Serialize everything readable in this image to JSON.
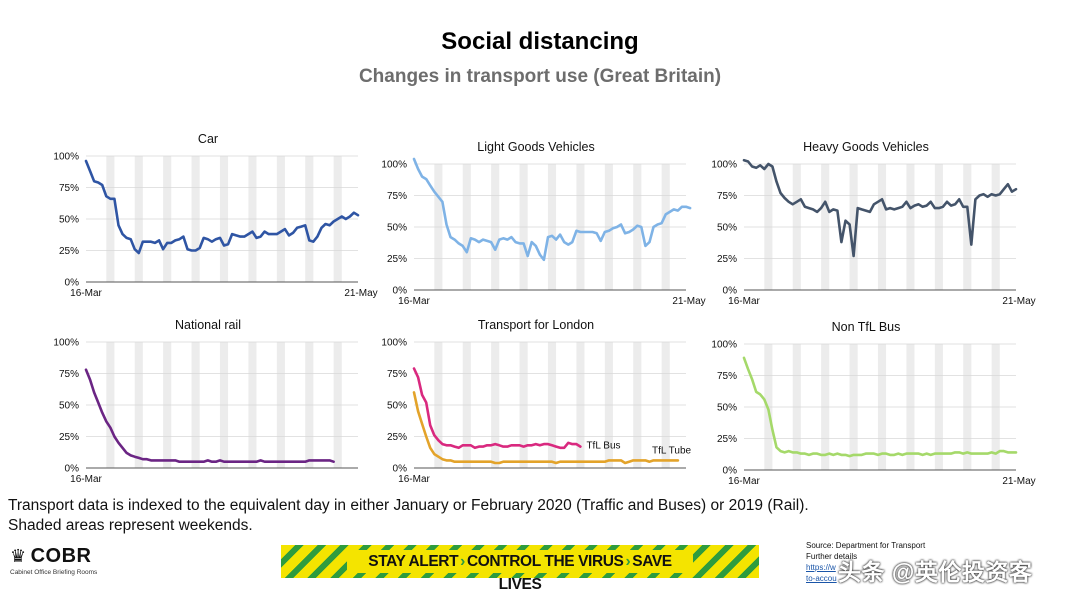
{
  "header": {
    "title": "Social distancing",
    "subtitle": "Changes in transport use (Great Britain)"
  },
  "chart_data": [
    {
      "type": "line",
      "title": "Car",
      "x_start_label": "16-Mar",
      "x_end_label": "21-May",
      "ylim": [
        0,
        100
      ],
      "yticks": [
        "0%",
        "25%",
        "50%",
        "75%",
        "100%"
      ],
      "weekends": [
        [
          5,
          6
        ],
        [
          12,
          13
        ],
        [
          19,
          20
        ],
        [
          26,
          27
        ],
        [
          33,
          34
        ],
        [
          40,
          41
        ],
        [
          47,
          48
        ],
        [
          54,
          55
        ],
        [
          61,
          62
        ]
      ],
      "series": [
        {
          "name": "Car",
          "color": "#2f55a4",
          "values": [
            96,
            88,
            80,
            79,
            77,
            68,
            66,
            66,
            45,
            38,
            35,
            34,
            26,
            23,
            32,
            32,
            32,
            31,
            33,
            26,
            31,
            31,
            33,
            34,
            36,
            26,
            25,
            25,
            27,
            35,
            34,
            32,
            34,
            35,
            29,
            30,
            38,
            37,
            36,
            36,
            38,
            40,
            35,
            36,
            40,
            38,
            38,
            38,
            40,
            42,
            37,
            39,
            43,
            44,
            45,
            33,
            32,
            36,
            43,
            46,
            45,
            48,
            50,
            52,
            50,
            52,
            55,
            53
          ]
        }
      ]
    },
    {
      "type": "line",
      "title": "Light Goods Vehicles",
      "x_start_label": "16-Mar",
      "x_end_label": "21-May",
      "ylim": [
        0,
        100
      ],
      "yticks": [
        "0%",
        "25%",
        "50%",
        "75%",
        "100%"
      ],
      "weekends": [
        [
          5,
          6
        ],
        [
          12,
          13
        ],
        [
          19,
          20
        ],
        [
          26,
          27
        ],
        [
          33,
          34
        ],
        [
          40,
          41
        ],
        [
          47,
          48
        ],
        [
          54,
          55
        ],
        [
          61,
          62
        ]
      ],
      "series": [
        {
          "name": "Light Goods Vehicles",
          "color": "#7fb3e6",
          "values": [
            104,
            96,
            90,
            88,
            83,
            78,
            74,
            70,
            52,
            42,
            40,
            37,
            35,
            30,
            41,
            40,
            38,
            40,
            39,
            38,
            32,
            40,
            41,
            40,
            42,
            38,
            37,
            37,
            27,
            38,
            35,
            28,
            24,
            42,
            43,
            40,
            44,
            38,
            36,
            38,
            47,
            46,
            46,
            46,
            46,
            45,
            39,
            46,
            47,
            49,
            50,
            52,
            45,
            46,
            48,
            51,
            50,
            35,
            38,
            50,
            52,
            53,
            60,
            62,
            64,
            63,
            66,
            66,
            65
          ]
        }
      ]
    },
    {
      "type": "line",
      "title": "Heavy Goods Vehicles",
      "x_start_label": "16-Mar",
      "x_end_label": "21-May",
      "ylim": [
        0,
        100
      ],
      "yticks": [
        "0%",
        "25%",
        "50%",
        "75%",
        "100%"
      ],
      "weekends": [
        [
          5,
          6
        ],
        [
          12,
          13
        ],
        [
          19,
          20
        ],
        [
          26,
          27
        ],
        [
          33,
          34
        ],
        [
          40,
          41
        ],
        [
          47,
          48
        ],
        [
          54,
          55
        ],
        [
          61,
          62
        ]
      ],
      "series": [
        {
          "name": "Heavy Goods Vehicles",
          "color": "#44546a",
          "values": [
            103,
            102,
            98,
            97,
            99,
            96,
            100,
            98,
            86,
            77,
            73,
            70,
            68,
            70,
            72,
            66,
            65,
            64,
            62,
            65,
            70,
            62,
            64,
            63,
            38,
            55,
            52,
            27,
            65,
            64,
            63,
            62,
            68,
            70,
            72,
            64,
            65,
            64,
            65,
            66,
            70,
            65,
            67,
            68,
            66,
            67,
            70,
            65,
            65,
            66,
            70,
            67,
            68,
            72,
            66,
            66,
            36,
            72,
            75,
            76,
            74,
            76,
            75,
            76,
            80,
            84,
            78,
            80
          ]
        }
      ]
    },
    {
      "type": "line",
      "title": "National rail",
      "x_start_label": "16-Mar",
      "x_end_label": "",
      "ylim": [
        0,
        100
      ],
      "yticks": [
        "0%",
        "25%",
        "50%",
        "75%",
        "100%"
      ],
      "weekends": [
        [
          5,
          6
        ],
        [
          12,
          13
        ],
        [
          19,
          20
        ],
        [
          26,
          27
        ],
        [
          33,
          34
        ],
        [
          40,
          41
        ],
        [
          47,
          48
        ],
        [
          54,
          55
        ],
        [
          61,
          62
        ]
      ],
      "series": [
        {
          "name": "National rail",
          "color": "#6b2584",
          "values": [
            78,
            70,
            60,
            52,
            44,
            37,
            32,
            25,
            20,
            16,
            12,
            10,
            9,
            8,
            7,
            7,
            6,
            6,
            6,
            6,
            6,
            6,
            6,
            5,
            5,
            5,
            5,
            5,
            5,
            5,
            6,
            5,
            5,
            6,
            5,
            5,
            5,
            5,
            5,
            5,
            5,
            5,
            5,
            6,
            5,
            5,
            5,
            5,
            5,
            5,
            5,
            5,
            5,
            5,
            5,
            6,
            6,
            6,
            6,
            6,
            6,
            5
          ]
        }
      ]
    },
    {
      "type": "line",
      "title": "Transport for London",
      "x_start_label": "16-Mar",
      "x_end_label": "",
      "ylim": [
        0,
        100
      ],
      "yticks": [
        "0%",
        "25%",
        "50%",
        "75%",
        "100%"
      ],
      "weekends": [
        [
          5,
          6
        ],
        [
          12,
          13
        ],
        [
          19,
          20
        ],
        [
          26,
          27
        ],
        [
          33,
          34
        ],
        [
          40,
          41
        ],
        [
          47,
          48
        ],
        [
          54,
          55
        ],
        [
          61,
          62
        ]
      ],
      "annotations": [
        "TfL Bus",
        "TfL Tube"
      ],
      "series": [
        {
          "name": "TfL Bus",
          "color": "#d9297f",
          "values": [
            79,
            72,
            58,
            52,
            34,
            26,
            22,
            19,
            18,
            18,
            17,
            16,
            18,
            18,
            18,
            16,
            17,
            17,
            18,
            18,
            19,
            18,
            17,
            17,
            18,
            18,
            18,
            17,
            18,
            18,
            19,
            18,
            19,
            19,
            18,
            17,
            16,
            16,
            20,
            19,
            19,
            17
          ]
        },
        {
          "name": "TfL Tube",
          "color": "#e3a32a",
          "values": [
            60,
            45,
            35,
            25,
            16,
            11,
            9,
            7,
            6,
            6,
            5,
            5,
            5,
            5,
            5,
            5,
            5,
            5,
            5,
            5,
            4,
            4,
            5,
            5,
            5,
            5,
            5,
            5,
            5,
            5,
            5,
            5,
            5,
            5,
            5,
            4,
            5,
            5,
            5,
            5,
            5,
            5,
            5,
            5,
            5,
            5,
            5,
            5,
            6,
            6,
            6,
            6,
            4,
            5,
            6,
            6,
            6,
            6,
            5,
            6,
            6,
            6,
            6,
            6,
            6,
            6
          ]
        }
      ]
    },
    {
      "type": "line",
      "title": "Non TfL Bus",
      "x_start_label": "16-Mar",
      "x_end_label": "21-May",
      "ylim": [
        0,
        100
      ],
      "yticks": [
        "0%",
        "25%",
        "50%",
        "75%",
        "100%"
      ],
      "weekends": [
        [
          5,
          6
        ],
        [
          12,
          13
        ],
        [
          19,
          20
        ],
        [
          26,
          27
        ],
        [
          33,
          34
        ],
        [
          40,
          41
        ],
        [
          47,
          48
        ],
        [
          54,
          55
        ],
        [
          61,
          62
        ]
      ],
      "series": [
        {
          "name": "Non TfL Bus",
          "color": "#a5d96a",
          "values": [
            89,
            80,
            72,
            62,
            60,
            56,
            48,
            32,
            18,
            15,
            14,
            15,
            14,
            14,
            13,
            13,
            12,
            13,
            13,
            12,
            12,
            13,
            12,
            13,
            12,
            12,
            11,
            12,
            12,
            12,
            13,
            13,
            13,
            12,
            13,
            13,
            12,
            12,
            13,
            12,
            13,
            13,
            13,
            13,
            12,
            13,
            12,
            13,
            13,
            13,
            13,
            13,
            14,
            14,
            13,
            14,
            13,
            13,
            13,
            13,
            13,
            14,
            13,
            15,
            15,
            14,
            14,
            14
          ]
        }
      ]
    }
  ],
  "footnote": {
    "line1": "Transport data is indexed to the equivalent day in either January or February 2020 (Traffic and Buses) or 2019 (Rail).",
    "line2": "Shaded areas represent weekends."
  },
  "logo": {
    "crest_icon": "♛",
    "name": "COBR",
    "subtitle": "Cabinet Office Briefing Rooms"
  },
  "banner": {
    "part1": "STAY ALERT",
    "part2": "CONTROL THE VIRUS",
    "part3": "SAVE LIVES",
    "separator": "›"
  },
  "source": {
    "line1": "Source: Department for Transport",
    "line2": "Further details",
    "line3": "https://w",
    "line4": "to-accou"
  },
  "watermark": "头条 @英伦投资客",
  "colors": {
    "gridline": "#d9d9d9",
    "weekend_shade": "#ececec",
    "axis": "#555555",
    "banner_yellow": "#f4e400",
    "banner_green": "#2e9c3e"
  }
}
